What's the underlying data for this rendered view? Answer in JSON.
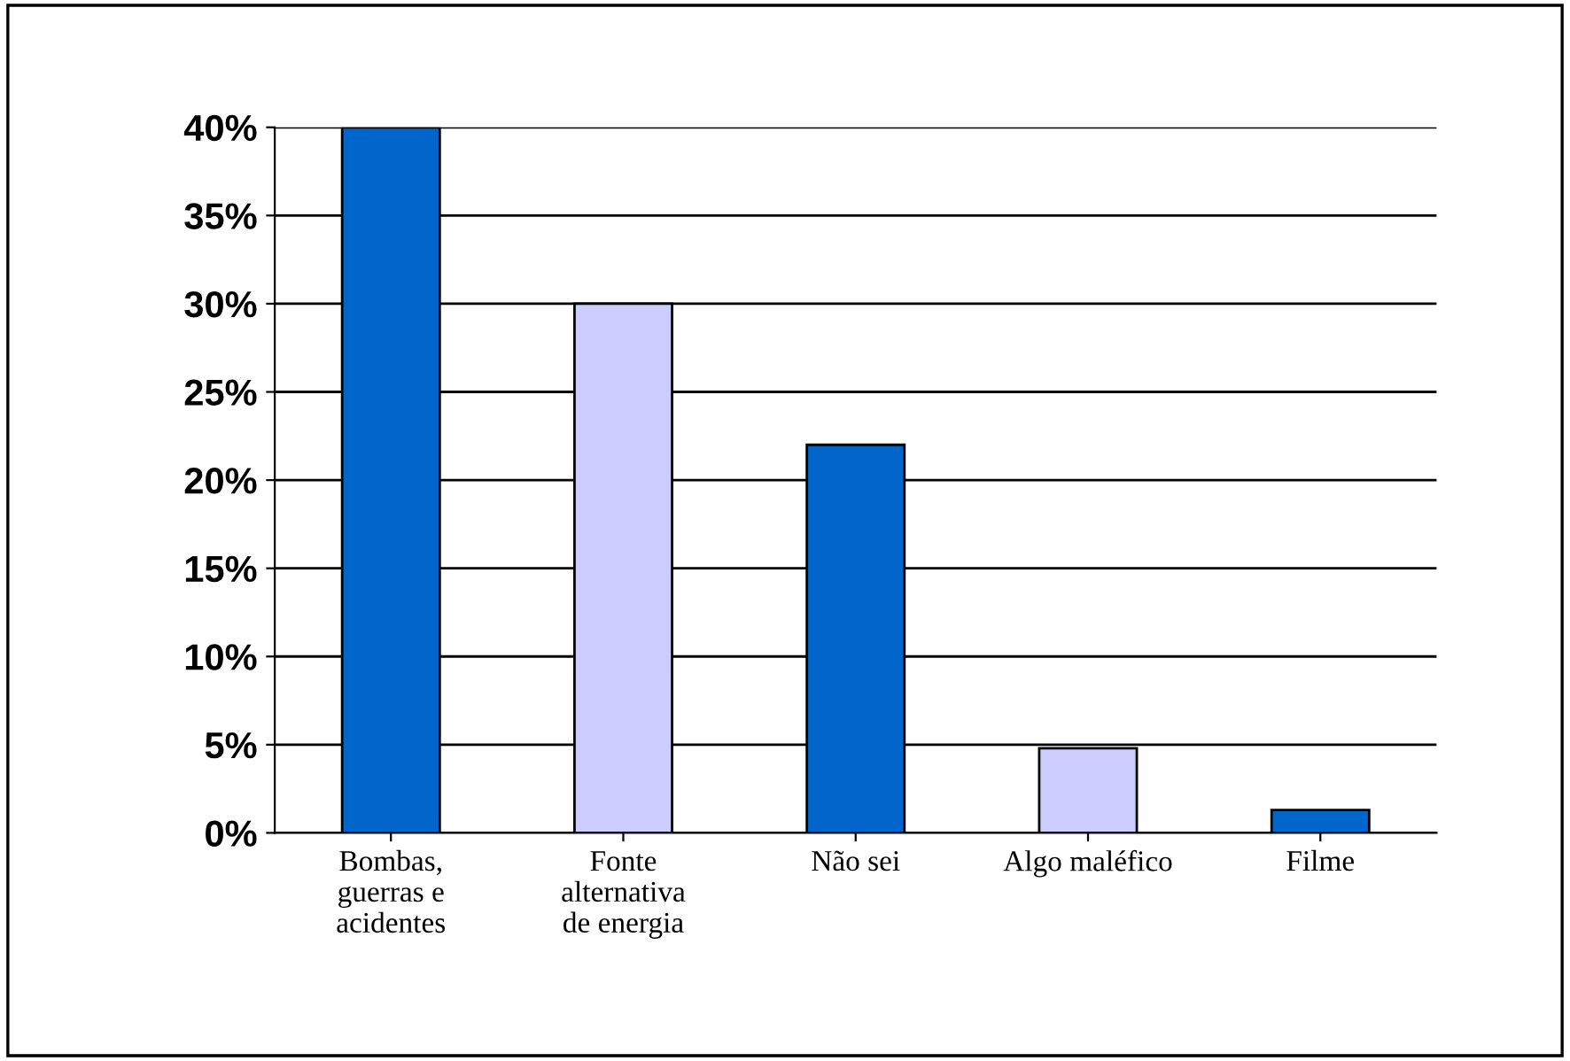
{
  "chart_data": {
    "type": "bar",
    "categories": [
      "Bombas, guerras e acidentes",
      "Fonte alternativa de energia",
      "Não sei",
      "Algo maléfico",
      "Filme"
    ],
    "values": [
      40,
      30,
      22,
      4.8,
      1.3
    ],
    "colors": [
      "#0066cc",
      "#ccccff",
      "#0066cc",
      "#ccccff",
      "#0066cc"
    ],
    "ylim": [
      0,
      40
    ],
    "yticks": [
      {
        "value": 0,
        "label": "0%"
      },
      {
        "value": 5,
        "label": "5%"
      },
      {
        "value": 10,
        "label": "10%"
      },
      {
        "value": 15,
        "label": "15%"
      },
      {
        "value": 20,
        "label": "20%"
      },
      {
        "value": 25,
        "label": "25%"
      },
      {
        "value": 30,
        "label": "30%"
      },
      {
        "value": 35,
        "label": "35%"
      },
      {
        "value": 40,
        "label": "40%"
      }
    ],
    "grid": "y",
    "legend": false
  }
}
